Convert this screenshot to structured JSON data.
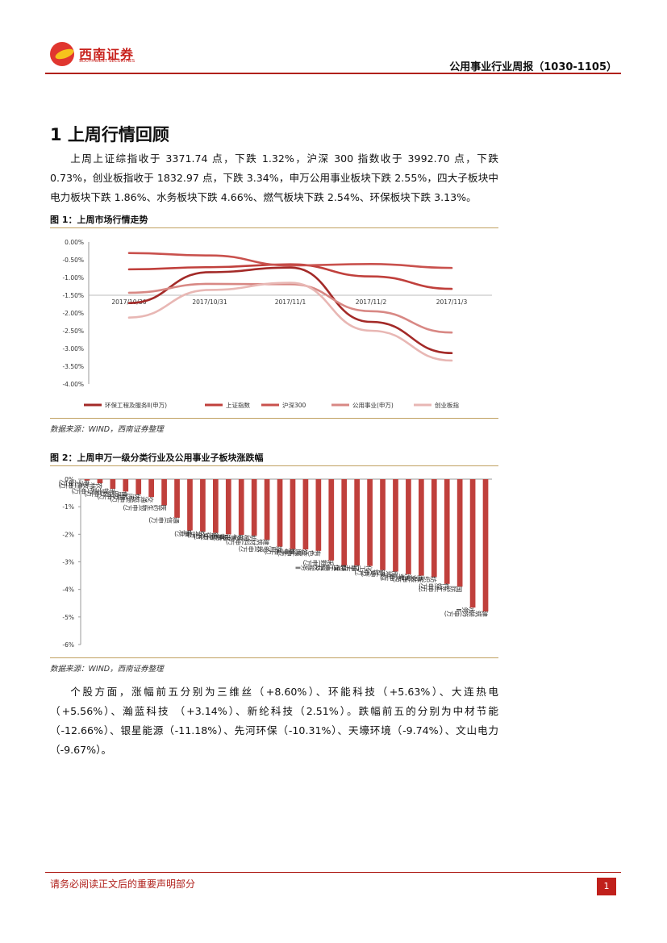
{
  "header": {
    "logo_cn": "西南证券",
    "logo_en": "SOUTHWEST SECURITIES",
    "report_title": "公用事业行业周报（1030-1105）"
  },
  "section": {
    "heading": "1 上周行情回顾",
    "paragraph1": "上周上证综指收于 3371.74 点，下跌 1.32%，沪深 300 指数收于 3992.70 点，下跌 0.73%，创业板指收于 1832.97 点，下跌 3.34%，申万公用事业板块下跌 2.55%，四大子板块中电力板块下跌 1.86%、水务板块下跌 4.66%、燃气板块下跌 2.54%、环保板块下跌 3.13%。",
    "paragraph2": "个股方面，涨幅前五分别为三维丝（+8.60%）、环能科技（+5.63%）、大连热电（+5.56%）、瀚蓝科技 （+3.14%）、新纶科技（2.51%）。跌幅前五的分别为中材节能（-12.66%）、银星能源（-11.18%）、先河环保（-10.31%）、天壕环境（-9.74%）、文山电力（-9.67%）。"
  },
  "figure1": {
    "title": "图 1：上周市场行情走势",
    "source": "数据来源：WIND，西南证券整理"
  },
  "figure2": {
    "title": "图 2：上周申万一级分类行业及公用事业子板块涨跌幅",
    "source": "数据来源：WIND，西南证券整理"
  },
  "footer": {
    "disclaimer": "请务必阅读正文后的重要声明部分",
    "page": "1"
  },
  "chart_data": [
    {
      "type": "line",
      "x": [
        "2017/10/30",
        "2017/10/31",
        "2017/11/1",
        "2017/11/2",
        "2017/11/3"
      ],
      "ylim": [
        -4.0,
        0.0
      ],
      "yticks": [
        "0.00%",
        "-0.50%",
        "-1.00%",
        "-1.50%",
        "-2.00%",
        "-2.50%",
        "-3.00%",
        "-3.50%",
        "-4.00%"
      ],
      "legend_position": "bottom",
      "grid": false,
      "series": [
        {
          "name": "环保工程及服务Ⅱ(申万)",
          "color": "#a32a28",
          "values": [
            -1.72,
            -0.85,
            -0.72,
            -2.25,
            -3.13
          ]
        },
        {
          "name": "上证指数",
          "color": "#c0403c",
          "values": [
            -0.77,
            -0.71,
            -0.63,
            -0.97,
            -1.32
          ]
        },
        {
          "name": "沪深300",
          "color": "#c9514d",
          "values": [
            -0.31,
            -0.38,
            -0.66,
            -0.62,
            -0.73
          ]
        },
        {
          "name": "公用事业(申万)",
          "color": "#d88884",
          "values": [
            -1.43,
            -1.18,
            -1.19,
            -1.95,
            -2.55
          ]
        },
        {
          "name": "创业板指",
          "color": "#e8b7b4",
          "values": [
            -2.13,
            -1.35,
            -1.15,
            -2.5,
            -3.34
          ]
        }
      ]
    },
    {
      "type": "bar",
      "ylim": [
        -6,
        0
      ],
      "yticks": [
        "0%",
        "-1%",
        "-2%",
        "-3%",
        "-4%",
        "-5%",
        "-6%"
      ],
      "color": "#c0403c",
      "categories": [
        "电子(申万)",
        "农林牧渔(申万)",
        "非银金融(申万)",
        "食品饮料(申万)",
        "休闲服务(申万)",
        "交通运输(申万)",
        "医药生物(申万)",
        "通信(申万)",
        "电力",
        "综合(申万)",
        "银行(申万)",
        "计算机(申万)",
        "电气设备(申万)",
        "机械设备(申万)",
        "建筑材料(申万)",
        "家用电器(申万)",
        "燃气Ⅱ",
        "公用事业(申万)",
        "有色金属(申万)",
        "采掘(申万)",
        "环保工程及服务Ⅱ",
        "轻工制造(申万)",
        "化工(申万)",
        "钢铁(申万)",
        "房地产(申万)",
        "汽车(申万)",
        "商业贸易(申万)",
        "纺织服装(申万)",
        "传媒(申万)",
        "国防军工(申万)",
        "水务Ⅱ",
        "建筑装饰(申万)"
      ],
      "values": [
        -0.05,
        -0.15,
        -0.35,
        -0.45,
        -0.55,
        -0.65,
        -0.95,
        -1.4,
        -1.86,
        -1.9,
        -1.95,
        -2.0,
        -2.02,
        -2.05,
        -2.2,
        -2.45,
        -2.54,
        -2.55,
        -2.6,
        -2.95,
        -3.13,
        -3.13,
        -3.15,
        -3.3,
        -3.35,
        -3.45,
        -3.5,
        -3.55,
        -3.8,
        -3.9,
        -4.66,
        -4.8
      ]
    }
  ]
}
